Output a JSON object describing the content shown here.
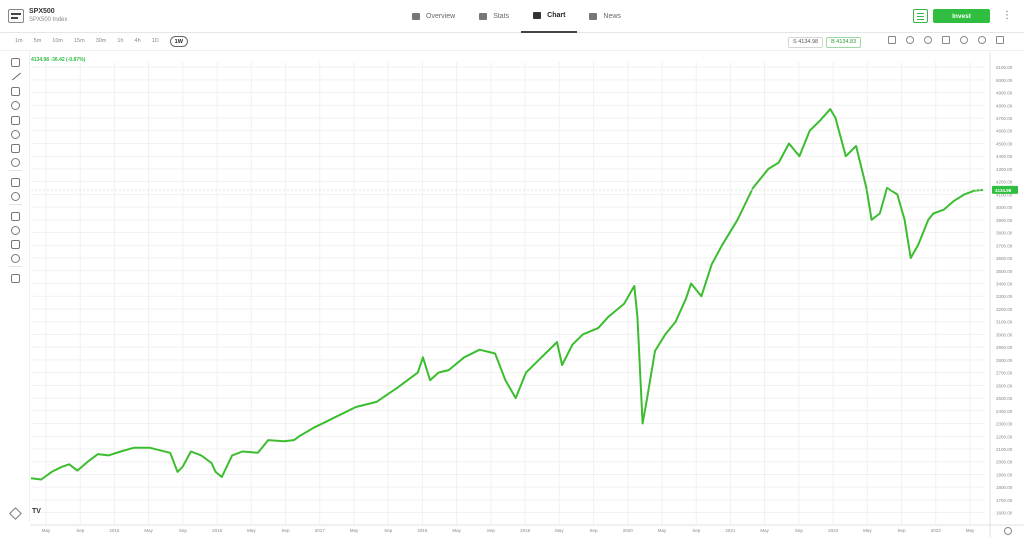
{
  "header": {
    "symbol": "SPX500",
    "name": "SPX500 Index",
    "tabs": [
      {
        "label": "Overview",
        "icon": "overview-icon"
      },
      {
        "label": "Stats",
        "icon": "stats-icon"
      },
      {
        "label": "Chart",
        "icon": "chart-icon",
        "active": true
      },
      {
        "label": "News",
        "icon": "news-icon"
      }
    ],
    "invest_label": "Invest",
    "more_label": "⋮"
  },
  "toolbar": {
    "timeframes": [
      "1m",
      "5m",
      "10m",
      "15m",
      "30m",
      "1h",
      "4h",
      "1D",
      "1W"
    ],
    "active_timeframe": "1W",
    "sell_price": "S 4134.98",
    "buy_price": "B 4134.83",
    "icons": [
      "pencil-icon",
      "indicator-icon",
      "compare-icon",
      "calendar-icon",
      "add-icon",
      "share-icon",
      "fullscreen-icon"
    ]
  },
  "left_tools": [
    "crosshair-icon",
    "trend-line-icon",
    "horizontal-lines-icon",
    "brush-icon",
    "text-icon",
    "pattern-icon",
    "forecast-icon",
    "emoji-icon",
    "ruler-icon",
    "zoom-in-icon",
    "magnet-icon",
    "lock-drawing-icon",
    "lock-icon",
    "visibility-icon",
    "trash-icon"
  ],
  "ohlc_readout": "4134.98 -36.42 (-0.87%)",
  "colors": {
    "line": "#3cbd2f",
    "accent": "#2fbe3f",
    "grid": "#f1f1f1"
  },
  "chart_data": {
    "type": "line",
    "x_labels": [
      "May",
      "Sep",
      "2015",
      "May",
      "Sep",
      "2016",
      "May",
      "Sep",
      "2017",
      "May",
      "Sep",
      "2018",
      "May",
      "Sep",
      "2019",
      "May",
      "Sep",
      "2020",
      "May",
      "Sep",
      "2021",
      "May",
      "Sep",
      "2022",
      "May",
      "Sep",
      "2023",
      "May"
    ],
    "y_ticks": [
      "5100.00",
      "5000.00",
      "4900.00",
      "4800.00",
      "4700.00",
      "4600.00",
      "4500.00",
      "4400.00",
      "4300.00",
      "4200.00",
      "4100.00",
      "4000.00",
      "3900.00",
      "3800.00",
      "3700.00",
      "3600.00",
      "3500.00",
      "3400.00",
      "3300.00",
      "3200.00",
      "3100.00",
      "3000.00",
      "2900.00",
      "2800.00",
      "2700.00",
      "2600.00",
      "2500.00",
      "2400.00",
      "2300.00",
      "2200.00",
      "2100.00",
      "2000.00",
      "1900.00",
      "1800.00",
      "1700.00",
      "1600.00"
    ],
    "ylim": [
      1550,
      5140
    ],
    "xlim": [
      2014.25,
      2023.5
    ],
    "last_price_label": "4134.98",
    "series": [
      {
        "x": [
          2014.25,
          2014.35,
          2014.45,
          2014.55,
          2014.62,
          2014.7,
          2014.8,
          2014.9,
          2015.0,
          2015.12,
          2015.25,
          2015.4,
          2015.5,
          2015.6,
          2015.67,
          2015.72,
          2015.8,
          2015.9,
          2016.0,
          2016.04,
          2016.1,
          2016.2,
          2016.3,
          2016.45,
          2016.55,
          2016.7,
          2016.8,
          2016.85,
          2017.0,
          2017.2,
          2017.4,
          2017.6,
          2017.8,
          2018.0,
          2018.05,
          2018.12,
          2018.2,
          2018.3,
          2018.45,
          2018.6,
          2018.75,
          2018.85,
          2018.95,
          2019.05,
          2019.2,
          2019.35,
          2019.4,
          2019.5,
          2019.6,
          2019.75,
          2019.85,
          2020.0,
          2020.1,
          2020.13,
          2020.18,
          2020.22,
          2020.3,
          2020.4,
          2020.5,
          2020.6,
          2020.65,
          2020.75,
          2020.85,
          2020.95,
          2021.1,
          2021.25,
          2021.4,
          2021.5,
          2021.6,
          2021.7,
          2021.8,
          2021.9,
          2022.0,
          2022.05,
          2022.15,
          2022.25,
          2022.35,
          2022.4,
          2022.48,
          2022.55,
          2022.65,
          2022.72,
          2022.78,
          2022.85,
          2022.95,
          2023.0,
          2023.1,
          2023.2,
          2023.3,
          2023.4,
          2023.48
        ],
        "y": [
          1870,
          1860,
          1920,
          1960,
          1980,
          1930,
          2000,
          2060,
          2050,
          2080,
          2110,
          2110,
          2090,
          2070,
          1920,
          1960,
          2080,
          2050,
          1990,
          1920,
          1880,
          2050,
          2080,
          2070,
          2170,
          2160,
          2170,
          2200,
          2270,
          2350,
          2430,
          2470,
          2580,
          2700,
          2820,
          2640,
          2700,
          2720,
          2820,
          2880,
          2850,
          2640,
          2500,
          2700,
          2820,
          2940,
          2760,
          2920,
          3000,
          3050,
          3140,
          3240,
          3380,
          3140,
          2300,
          2480,
          2870,
          3000,
          3100,
          3280,
          3400,
          3300,
          3550,
          3700,
          3900,
          4150,
          4300,
          4350,
          4500,
          4400,
          4600,
          4680,
          4770,
          4700,
          4400,
          4480,
          4150,
          3900,
          3950,
          4150,
          4100,
          3900,
          3600,
          3700,
          3900,
          3950,
          3980,
          4050,
          4100,
          4130,
          4135
        ]
      }
    ]
  }
}
